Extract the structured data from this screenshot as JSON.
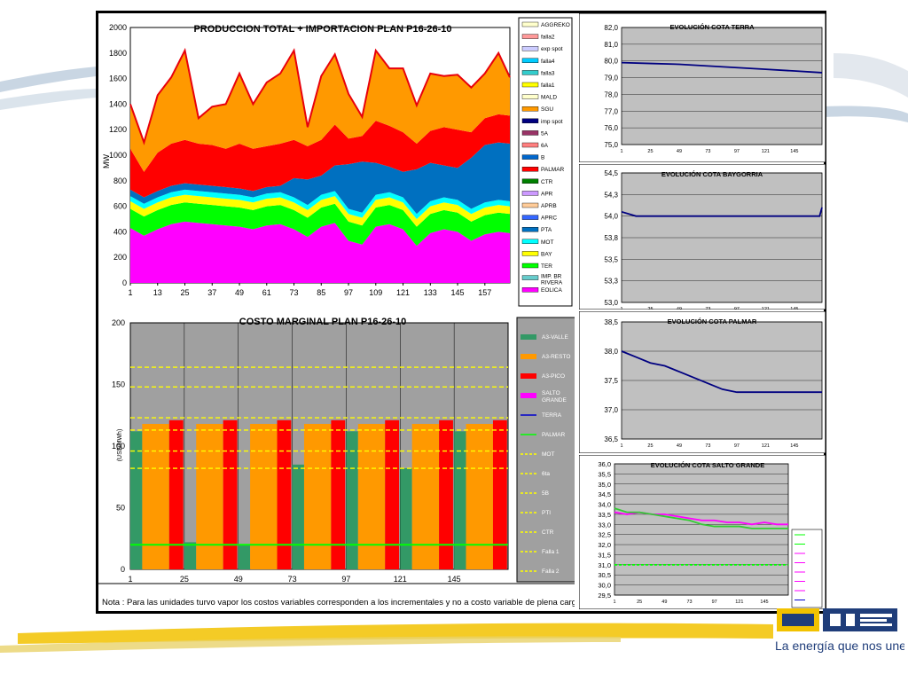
{
  "production_chart": {
    "title": "PRODUCCION TOTAL + IMPORTACION PLAN     P16-26-10",
    "ylabel": "MW",
    "ylim": [
      0,
      2000
    ],
    "yticks": [
      "0",
      "200",
      "400",
      "600",
      "800",
      "1000",
      "1200",
      "1400",
      "1600",
      "1800",
      "2000"
    ],
    "xticks": [
      "1",
      "13",
      "25",
      "37",
      "49",
      "61",
      "73",
      "85",
      "97",
      "109",
      "121",
      "133",
      "145",
      "157"
    ],
    "legend": [
      {
        "label": "AGGREKO",
        "color": "#ffffcc"
      },
      {
        "label": "falla2",
        "color": "#ff9999"
      },
      {
        "label": "exp spot",
        "color": "#ccccff"
      },
      {
        "label": "falla4",
        "color": "#00ccff"
      },
      {
        "label": "falla3",
        "color": "#33cccc"
      },
      {
        "label": "falla1",
        "color": "#ffff00"
      },
      {
        "label": "MALD",
        "color": "#ffffcc"
      },
      {
        "label": "SGU",
        "color": "#ff9900"
      },
      {
        "label": "imp spot",
        "color": "#000080"
      },
      {
        "label": "5A",
        "color": "#993366"
      },
      {
        "label": "6A",
        "color": "#ff8080"
      },
      {
        "label": "B",
        "color": "#0066cc"
      },
      {
        "label": "PALMAR",
        "color": "#ff0000"
      },
      {
        "label": "CTR",
        "color": "#008000"
      },
      {
        "label": "APR",
        "color": "#cc99ff"
      },
      {
        "label": "APRB",
        "color": "#ffcc99"
      },
      {
        "label": "APRC",
        "color": "#3366ff"
      },
      {
        "label": "PTA",
        "color": "#0070c0"
      },
      {
        "label": "MOT",
        "color": "#00ffff"
      },
      {
        "label": "BAY",
        "color": "#ffff00"
      },
      {
        "label": "TER",
        "color": "#00ff00"
      },
      {
        "label": "IMP. BR RIVERA",
        "color": "#66cccc"
      },
      {
        "label": "EOLICA",
        "color": "#ff00ff"
      }
    ]
  },
  "cost_chart": {
    "title": "COSTO MARGINAL PLAN     P16-26-10",
    "ylabel": "(US$/MWh)",
    "ylim": [
      0,
      200
    ],
    "yticks": [
      "0",
      "50",
      "100",
      "150",
      "200"
    ],
    "xticks": [
      "1",
      "25",
      "49",
      "73",
      "97",
      "121",
      "145"
    ],
    "legend": [
      {
        "label": "A3-VALLE",
        "color": "#339966"
      },
      {
        "label": "A3-RESTO",
        "color": "#ff9900"
      },
      {
        "label": "A3-PICO",
        "color": "#ff0000"
      },
      {
        "label": "SALTO GRANDE",
        "color": "#ff00ff"
      },
      {
        "label": "TERRA",
        "color": "#0000cc"
      },
      {
        "label": "PALMAR",
        "color": "#00ff00"
      },
      {
        "label": "MOT",
        "color": "#ffff00"
      },
      {
        "label": "6ta",
        "color": "#ffff00"
      },
      {
        "label": "5B",
        "color": "#ffff00"
      },
      {
        "label": "PTI",
        "color": "#ffff00"
      },
      {
        "label": "CTR",
        "color": "#ffff00"
      },
      {
        "label": "Falla 1",
        "color": "#ffff00"
      },
      {
        "label": "Falla 2",
        "color": "#ffff00"
      }
    ],
    "note": "Nota : Para las unidades turvo vapor los costos variables corresponden a los incrementales y no a costo variable de plena carga"
  },
  "terra_chart": {
    "title": "EVOLUCIÓN COTA TERRA",
    "ylim": [
      75.0,
      82.0
    ],
    "yticks": [
      "75,0",
      "76,0",
      "77,0",
      "78,0",
      "79,0",
      "80,0",
      "81,0",
      "82,0"
    ],
    "xticks": [
      "1",
      "25",
      "49",
      "73",
      "97",
      "121",
      "145"
    ]
  },
  "baygorria_chart": {
    "title": "EVOLUCIÓN COTA BAYGORRIA",
    "ylim": [
      53.0,
      54.5
    ],
    "yticks": [
      "53,0",
      "53,3",
      "53,5",
      "53,8",
      "54,0",
      "54,3",
      "54,5"
    ],
    "xticks": [
      "1",
      "25",
      "49",
      "73",
      "97",
      "121",
      "145"
    ]
  },
  "palmar_chart": {
    "title": "EVOLUCIÓN COTA PALMAR",
    "ylim": [
      36.5,
      38.5
    ],
    "yticks": [
      "36,5",
      "37,0",
      "37,5",
      "38,0",
      "38,5"
    ],
    "xticks": [
      "1",
      "25",
      "49",
      "73",
      "97",
      "121",
      "145"
    ]
  },
  "salto_chart": {
    "title": "EVOLUCIÓN COTA SALTO GRANDE",
    "ylim": [
      29.5,
      36.0
    ],
    "yticks": [
      "29,5",
      "30,0",
      "30,5",
      "31,0",
      "31,5",
      "32,0",
      "32,5",
      "33,0",
      "33,5",
      "34,0",
      "34,5",
      "35,0",
      "35,5",
      "36,0"
    ],
    "xticks": [
      "1",
      "25",
      "49",
      "73",
      "97",
      "121",
      "145"
    ]
  },
  "chart_data": [
    {
      "type": "area",
      "title": "PRODUCCION TOTAL + IMPORTACION PLAN     P16-26-10",
      "ylabel": "MW",
      "ylim": [
        0,
        2000
      ],
      "x": [
        1,
        7,
        13,
        19,
        25,
        31,
        37,
        43,
        49,
        55,
        61,
        67,
        73,
        79,
        85,
        91,
        97,
        103,
        109,
        115,
        121,
        127,
        133,
        139,
        145,
        151,
        157,
        163,
        168
      ],
      "series": [
        {
          "name": "EOLICA",
          "values": [
            430,
            370,
            420,
            460,
            480,
            470,
            460,
            450,
            440,
            420,
            450,
            460,
            420,
            360,
            440,
            470,
            330,
            300,
            440,
            460,
            420,
            290,
            390,
            420,
            400,
            330,
            380,
            400,
            390
          ]
        },
        {
          "name": "TER",
          "values": [
            150,
            150,
            150,
            150,
            150,
            150,
            150,
            150,
            150,
            150,
            150,
            150,
            150,
            150,
            150,
            150,
            150,
            150,
            150,
            150,
            150,
            150,
            150,
            150,
            150,
            150,
            150,
            150,
            150
          ]
        },
        {
          "name": "BAY",
          "values": [
            60,
            60,
            60,
            60,
            60,
            60,
            60,
            60,
            60,
            60,
            60,
            60,
            60,
            60,
            60,
            60,
            60,
            60,
            60,
            60,
            60,
            60,
            60,
            60,
            60,
            60,
            60,
            60,
            60
          ]
        },
        {
          "name": "MOT",
          "values": [
            40,
            40,
            40,
            40,
            40,
            40,
            40,
            40,
            40,
            40,
            40,
            40,
            40,
            40,
            40,
            40,
            40,
            40,
            40,
            40,
            40,
            40,
            40,
            40,
            40,
            40,
            40,
            40,
            40
          ]
        },
        {
          "name": "PTA",
          "values": [
            50,
            50,
            50,
            50,
            50,
            50,
            50,
            50,
            50,
            50,
            50,
            50,
            150,
            200,
            150,
            200,
            350,
            400,
            250,
            200,
            200,
            350,
            300,
            250,
            250,
            400,
            450,
            450,
            450
          ]
        },
        {
          "name": "PALMAR",
          "values": [
            320,
            200,
            300,
            330,
            340,
            320,
            320,
            300,
            350,
            330,
            320,
            330,
            300,
            260,
            280,
            320,
            200,
            200,
            330,
            320,
            310,
            200,
            250,
            300,
            300,
            200,
            210,
            220,
            220
          ]
        },
        {
          "name": "SGU",
          "values": [
            350,
            230,
            450,
            520,
            700,
            200,
            300,
            350,
            550,
            350,
            500,
            550,
            700,
            150,
            500,
            550,
            350,
            150,
            550,
            450,
            500,
            300,
            450,
            400,
            430,
            350,
            350,
            480,
            300
          ]
        }
      ]
    },
    {
      "type": "bar",
      "title": "COSTO MARGINAL PLAN     P16-26-10",
      "ylabel": "(US$/MWh)",
      "ylim": [
        0,
        200
      ],
      "categories": [
        "1",
        "25",
        "49",
        "73",
        "97",
        "121",
        "145"
      ],
      "series": [
        {
          "name": "A3-PICO",
          "values": [
            121,
            121,
            121,
            121,
            121,
            121,
            121
          ]
        },
        {
          "name": "A3-RESTO",
          "values": [
            118,
            118,
            118,
            118,
            118,
            118,
            118
          ]
        },
        {
          "name": "A3-VALLE",
          "values": [
            112,
            22,
            20,
            85,
            112,
            82,
            112
          ]
        }
      ],
      "reference_lines": [
        {
          "name": "PALMAR",
          "value": 20
        },
        {
          "name": "MOT",
          "value": 164
        },
        {
          "name": "6ta",
          "value": 148
        },
        {
          "name": "5B",
          "value": 123
        },
        {
          "name": "PTI",
          "value": 113
        },
        {
          "name": "CTR",
          "value": 96
        },
        {
          "name": "Falla 1",
          "value": 82
        }
      ]
    },
    {
      "type": "line",
      "title": "EVOLUCIÓN COTA TERRA",
      "ylim": [
        75.0,
        82.0
      ],
      "x": [
        1,
        25,
        49,
        73,
        97,
        121,
        145,
        168
      ],
      "series": [
        {
          "name": "TERRA",
          "values": [
            79.9,
            79.85,
            79.8,
            79.7,
            79.6,
            79.5,
            79.4,
            79.3
          ]
        }
      ]
    },
    {
      "type": "line",
      "title": "EVOLUCIÓN COTA BAYGORRIA",
      "ylim": [
        53.0,
        54.5
      ],
      "x": [
        1,
        13,
        25,
        49,
        73,
        97,
        121,
        145,
        166,
        168
      ],
      "series": [
        {
          "name": "BAYGORRIA",
          "values": [
            54.05,
            54.0,
            54.0,
            54.0,
            54.0,
            54.0,
            54.0,
            54.0,
            54.0,
            54.1
          ]
        }
      ]
    },
    {
      "type": "line",
      "title": "EVOLUCIÓN COTA PALMAR",
      "ylim": [
        36.5,
        38.5
      ],
      "x": [
        1,
        13,
        25,
        37,
        49,
        61,
        73,
        85,
        97,
        109,
        121,
        145,
        168
      ],
      "series": [
        {
          "name": "PALMAR",
          "values": [
            38.0,
            37.9,
            37.8,
            37.75,
            37.65,
            37.55,
            37.45,
            37.35,
            37.3,
            37.3,
            37.3,
            37.3,
            37.3
          ]
        }
      ]
    },
    {
      "type": "line",
      "title": "EVOLUCIÓN COTA SALTO GRANDE",
      "ylim": [
        29.5,
        36.0
      ],
      "x": [
        1,
        13,
        25,
        37,
        49,
        61,
        73,
        85,
        97,
        109,
        121,
        133,
        145,
        157,
        168
      ],
      "series": [
        {
          "name": "SALTO GRANDE",
          "values": [
            33.6,
            33.5,
            33.6,
            33.5,
            33.5,
            33.4,
            33.3,
            33.2,
            33.2,
            33.1,
            33.1,
            33.0,
            33.1,
            33.0,
            33.0
          ]
        },
        {
          "name": "PALMAR",
          "values": [
            33.8,
            33.6,
            33.6,
            33.5,
            33.4,
            33.3,
            33.2,
            33.0,
            32.9,
            32.9,
            32.9,
            32.8,
            32.8,
            32.8,
            32.8
          ]
        },
        {
          "name": "TERRA",
          "values": [
            31.0,
            31.0,
            31.0,
            31.0,
            31.0,
            31.0,
            31.0,
            31.0,
            31.0,
            31.0,
            31.0,
            31.0,
            31.0,
            31.0,
            31.0
          ]
        }
      ]
    }
  ],
  "brand": {
    "logo_text": "UTE",
    "slogan": "La energía que nos une",
    "colors": {
      "blue": "#1f3d7a",
      "yellow": "#f2c200",
      "teal": "#4db3b3"
    }
  }
}
